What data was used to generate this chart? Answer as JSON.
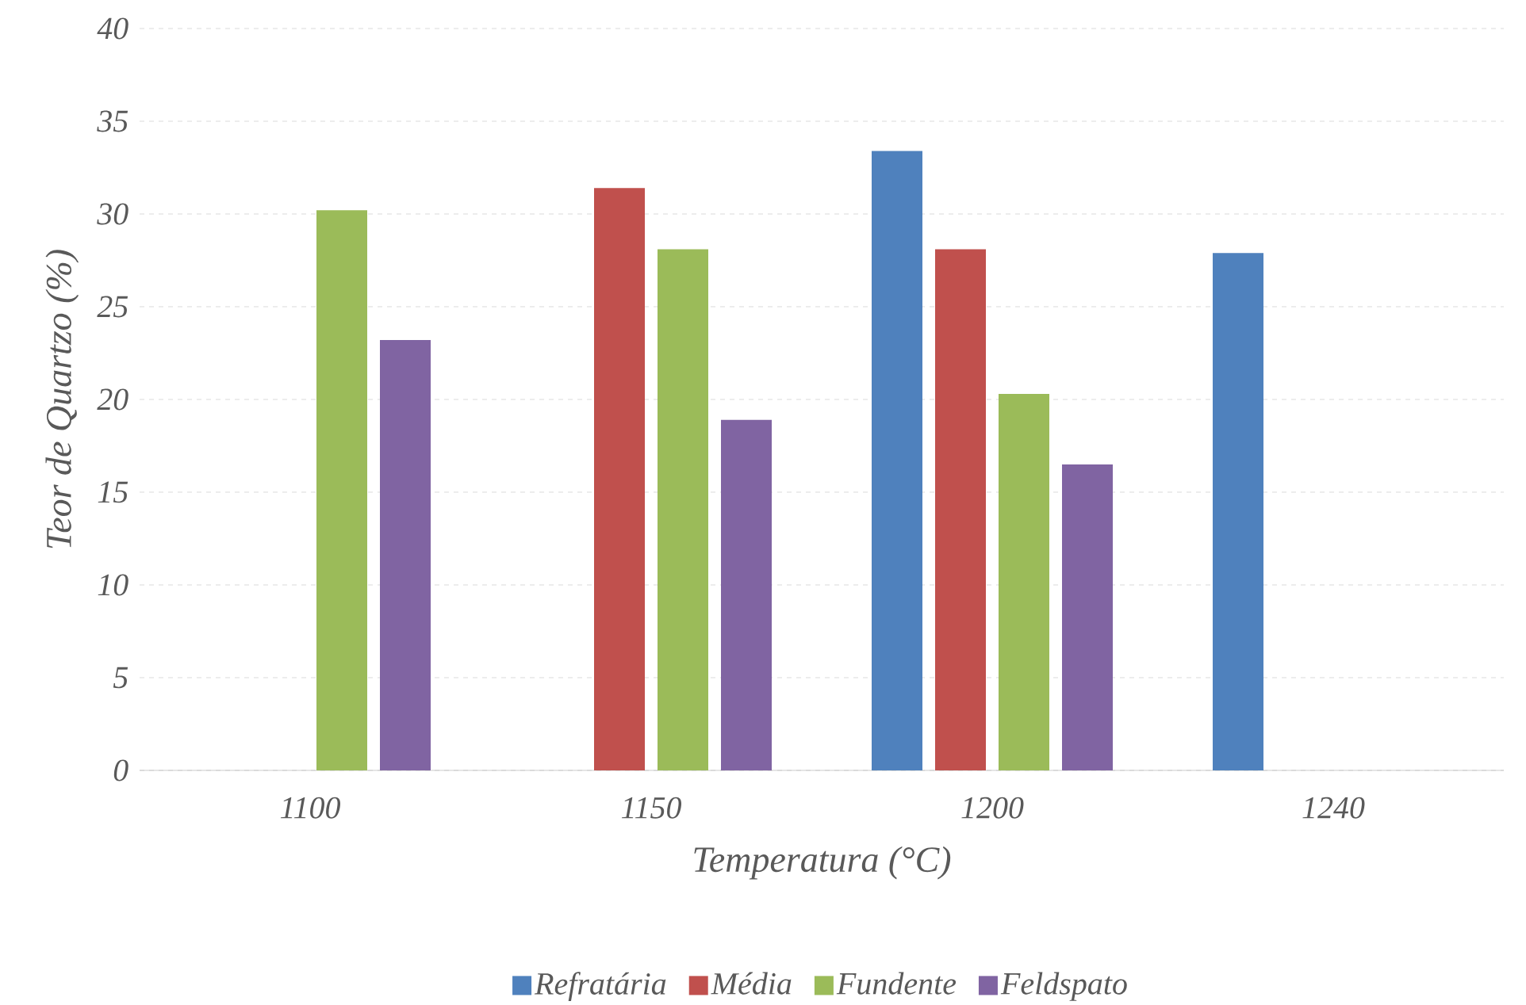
{
  "chart_data": {
    "type": "bar",
    "xlabel": "Temperatura (°C)",
    "ylabel": "Teor de Quartzo (%)",
    "categories": [
      "1100",
      "1150",
      "1200",
      "1240"
    ],
    "series": [
      {
        "name": "Refratária",
        "color": "#4f81bd",
        "values": [
          null,
          null,
          33.4,
          27.9
        ]
      },
      {
        "name": "Média",
        "color": "#c0504d",
        "values": [
          null,
          31.4,
          28.1,
          null
        ]
      },
      {
        "name": "Fundente",
        "color": "#9bbb59",
        "values": [
          30.2,
          28.1,
          20.3,
          null
        ]
      },
      {
        "name": "Feldspato",
        "color": "#8064a2",
        "values": [
          23.2,
          18.9,
          16.5,
          null
        ]
      }
    ],
    "ylim": [
      0,
      40
    ],
    "yticks": [
      0,
      5,
      10,
      15,
      20,
      25,
      30,
      35,
      40
    ],
    "grid": "y",
    "legend": "bottom"
  }
}
